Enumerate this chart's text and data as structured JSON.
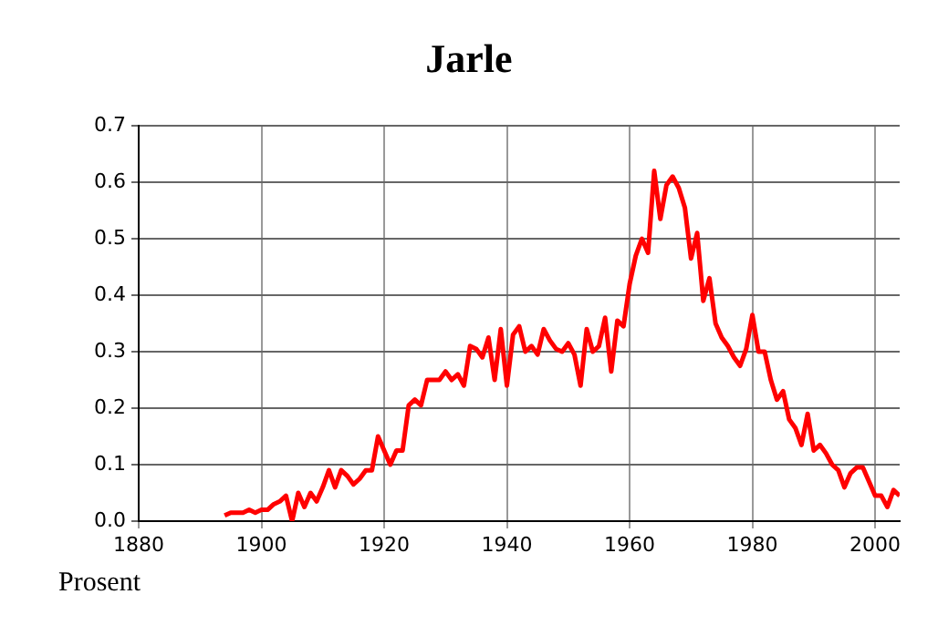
{
  "chart_data": {
    "type": "line",
    "title": "Jarle",
    "ylabel": "Prosent",
    "x": [
      1894,
      1895,
      1896,
      1897,
      1898,
      1899,
      1900,
      1901,
      1902,
      1903,
      1904,
      1905,
      1906,
      1907,
      1908,
      1909,
      1910,
      1911,
      1912,
      1913,
      1914,
      1915,
      1916,
      1917,
      1918,
      1919,
      1920,
      1921,
      1922,
      1923,
      1924,
      1925,
      1926,
      1927,
      1928,
      1929,
      1930,
      1931,
      1932,
      1933,
      1934,
      1935,
      1936,
      1937,
      1938,
      1939,
      1940,
      1941,
      1942,
      1943,
      1944,
      1945,
      1946,
      1947,
      1948,
      1949,
      1950,
      1951,
      1952,
      1953,
      1954,
      1955,
      1956,
      1957,
      1958,
      1959,
      1960,
      1961,
      1962,
      1963,
      1964,
      1965,
      1966,
      1967,
      1968,
      1969,
      1970,
      1971,
      1972,
      1973,
      1974,
      1975,
      1976,
      1977,
      1978,
      1979,
      1980,
      1981,
      1982,
      1983,
      1984,
      1985,
      1986,
      1987,
      1988,
      1989,
      1990,
      1991,
      1992,
      1993,
      1994,
      1995,
      1996,
      1997,
      1998,
      1999,
      2000,
      2001,
      2002,
      2003,
      2004
    ],
    "series": [
      {
        "color": "#ff0000",
        "values": [
          0.01,
          0.015,
          0.015,
          0.015,
          0.02,
          0.015,
          0.02,
          0.02,
          0.03,
          0.035,
          0.045,
          0.0,
          0.05,
          0.025,
          0.05,
          0.035,
          0.06,
          0.09,
          0.06,
          0.09,
          0.08,
          0.065,
          0.075,
          0.09,
          0.09,
          0.15,
          0.125,
          0.1,
          0.125,
          0.125,
          0.205,
          0.215,
          0.205,
          0.25,
          0.25,
          0.25,
          0.265,
          0.25,
          0.26,
          0.24,
          0.31,
          0.305,
          0.29,
          0.325,
          0.25,
          0.34,
          0.24,
          0.33,
          0.345,
          0.3,
          0.31,
          0.295,
          0.34,
          0.32,
          0.305,
          0.3,
          0.315,
          0.295,
          0.24,
          0.34,
          0.3,
          0.31,
          0.36,
          0.265,
          0.355,
          0.345,
          0.42,
          0.47,
          0.5,
          0.475,
          0.62,
          0.535,
          0.595,
          0.61,
          0.59,
          0.555,
          0.465,
          0.51,
          0.39,
          0.43,
          0.35,
          0.325,
          0.31,
          0.29,
          0.275,
          0.305,
          0.365,
          0.3,
          0.3,
          0.25,
          0.215,
          0.23,
          0.18,
          0.165,
          0.135,
          0.19,
          0.125,
          0.135,
          0.12,
          0.1,
          0.09,
          0.06,
          0.085,
          0.095,
          0.095,
          0.07,
          0.045,
          0.045,
          0.025,
          0.055,
          0.045
        ]
      }
    ],
    "xlim": [
      1880,
      2004
    ],
    "xticks": [
      1880,
      1900,
      1920,
      1940,
      1960,
      1980,
      2000
    ],
    "ylim": [
      0,
      0.7
    ],
    "yticks": [
      {
        "value": 0,
        "label": "0.0"
      },
      {
        "value": 0.1,
        "label": "0.1"
      },
      {
        "value": 0.2,
        "label": "0.2"
      },
      {
        "value": 0.3,
        "label": "0.3"
      },
      {
        "value": 0.4,
        "label": "0.4"
      },
      {
        "value": 0.5,
        "label": "0.5"
      },
      {
        "value": 0.6,
        "label": "0.6"
      },
      {
        "value": 0.7,
        "label": "0.7"
      }
    ],
    "grid": true,
    "legend": false,
    "marker": "none",
    "line_style": "solid"
  }
}
